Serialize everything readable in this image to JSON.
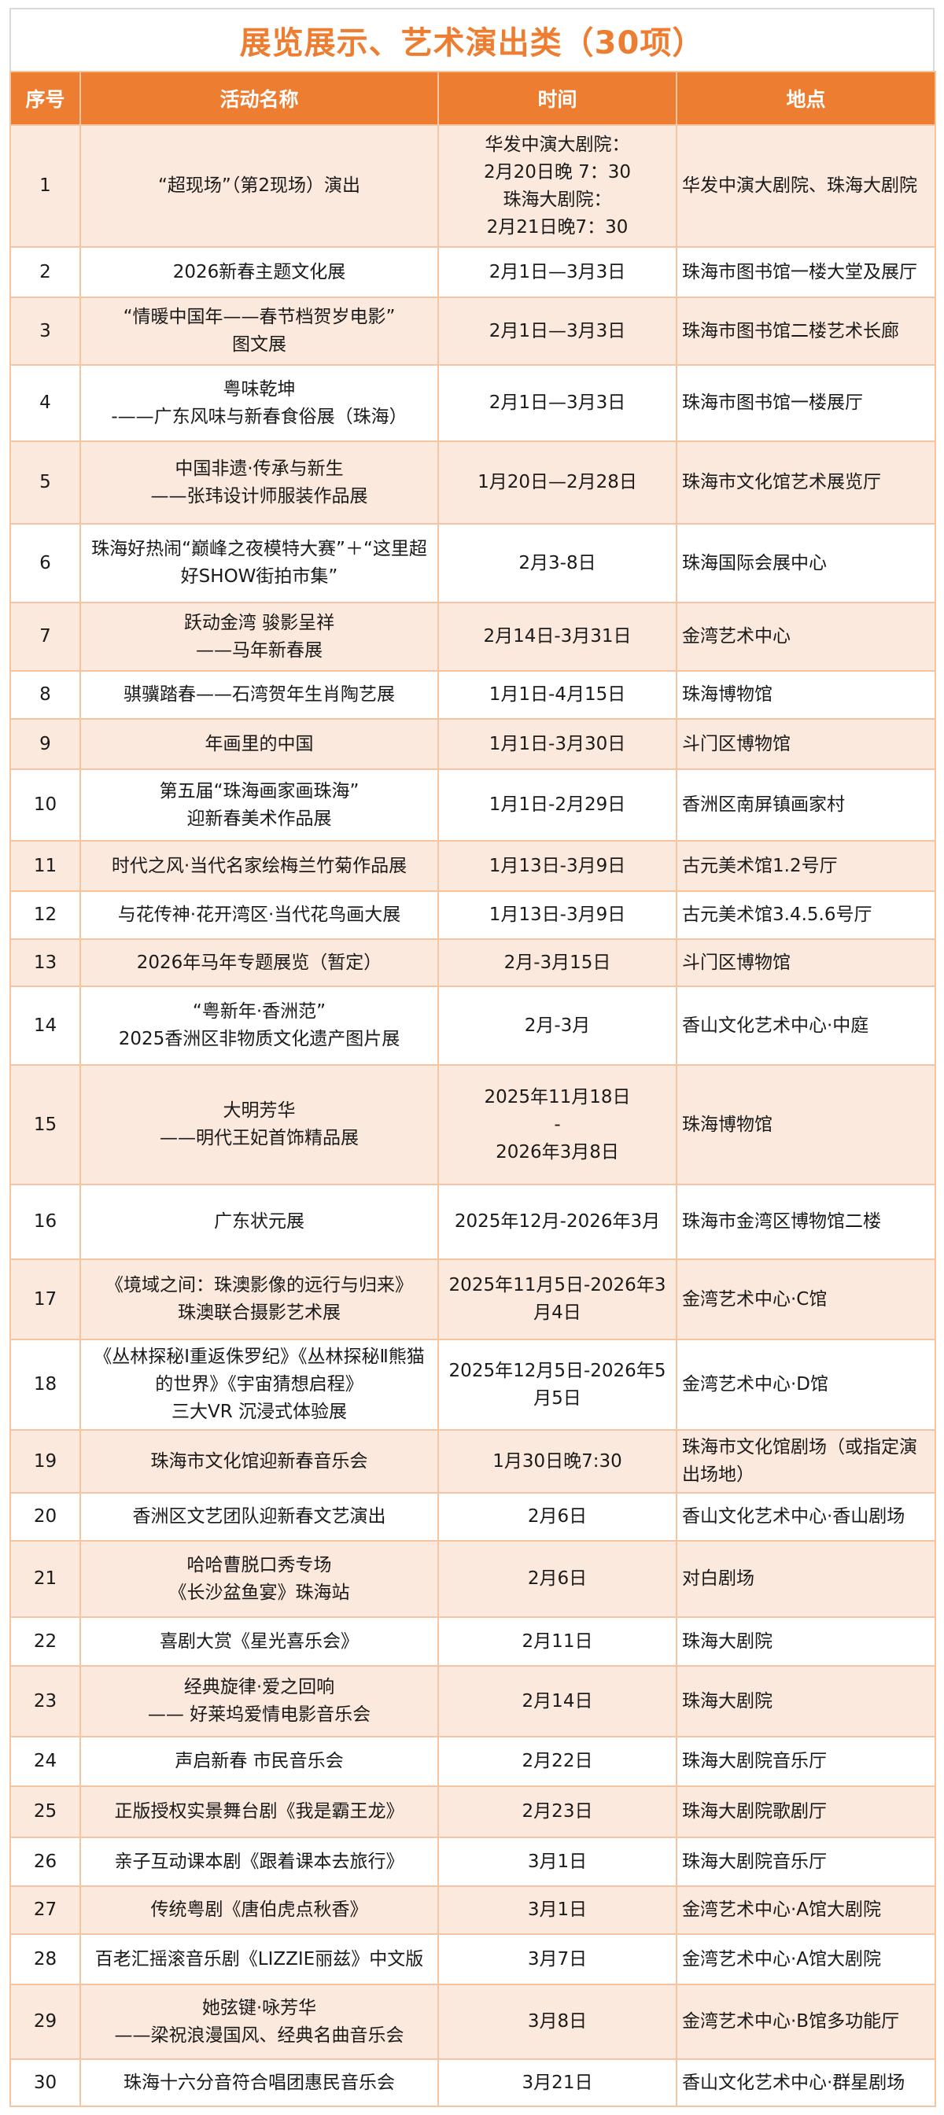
{
  "page": {
    "title": "展览展示、艺术演出类（30项）"
  },
  "table": {
    "columns": [
      "序号",
      "活动名称",
      "时间",
      "地点"
    ],
    "rows": [
      {
        "no": "1",
        "name": "“超现场”（第2现场）演出",
        "time": "华发中演大剧院：\n2月20日晚 7：30\n珠海大剧院：\n2月21日晚7：30",
        "location": "华发中演大剧院、珠海大剧院"
      },
      {
        "no": "2",
        "name": "2026新春主题文化展",
        "time": "2月1日—3月3日",
        "location": "珠海市图书馆一楼大堂及展厅"
      },
      {
        "no": "3",
        "name": "“情暖中国年——春节档贺岁电影”\n图文展",
        "time": "2月1日—3月3日",
        "location": "珠海市图书馆二楼艺术长廊"
      },
      {
        "no": "4",
        "name": "粤味乾坤\n-——广东风味与新春食俗展（珠海）",
        "time": "2月1日—3月3日",
        "location": "珠海市图书馆一楼展厅"
      },
      {
        "no": "5",
        "name": "中国非遗·传承与新生\n——张玮设计师服装作品展",
        "time": "1月20日—2月28日",
        "location": "珠海市文化馆艺术展览厅"
      },
      {
        "no": "6",
        "name": "珠海好热闹“巅峰之夜模特大赛”＋“这里超好SHOW街拍市集”",
        "time": "2月3-8日",
        "location": "珠海国际会展中心"
      },
      {
        "no": "7",
        "name": "跃动金湾 骏影呈祥\n——马年新春展",
        "time": "2月14日-3月31日",
        "location": "金湾艺术中心"
      },
      {
        "no": "8",
        "name": "骐骥踏春——石湾贺年生肖陶艺展",
        "time": "1月1日-4月15日",
        "location": "珠海博物馆"
      },
      {
        "no": "9",
        "name": "年画里的中国",
        "time": "1月1日-3月30日",
        "location": "斗门区博物馆"
      },
      {
        "no": "10",
        "name": "第五届“珠海画家画珠海”\n迎新春美术作品展",
        "time": "1月1日-2月29日",
        "location": "香洲区南屏镇画家村"
      },
      {
        "no": "11",
        "name": "时代之风·当代名家绘梅兰竹菊作品展",
        "time": "1月13日-3月9日",
        "location": "古元美术馆1.2号厅"
      },
      {
        "no": "12",
        "name": "与花传神·花开湾区·当代花鸟画大展",
        "time": "1月13日-3月9日",
        "location": "古元美术馆3.4.5.6号厅"
      },
      {
        "no": "13",
        "name": "2026年马年专题展览（暂定）",
        "time": "2月-3月15日",
        "location": "斗门区博物馆"
      },
      {
        "no": "14",
        "name": "“粤新年·香洲范”\n2025香洲区非物质文化遗产图片展",
        "time": "2月-3月",
        "location": "香山文化艺术中心·中庭"
      },
      {
        "no": "15",
        "name": "大明芳华\n——明代王妃首饰精品展",
        "time": "2025年11月18日\n-\n2026年3月8日",
        "location": "珠海博物馆"
      },
      {
        "no": "16",
        "name": "广东状元展",
        "time": "2025年12月-2026年3月",
        "location": "珠海市金湾区博物馆二楼"
      },
      {
        "no": "17",
        "name": "《境域之间：珠澳影像的远行与归来》\n珠澳联合摄影艺术展",
        "time": "2025年11月5日-2026年3月4日",
        "location": "金湾艺术中心·C馆"
      },
      {
        "no": "18",
        "name": "《丛林探秘I重返侏罗纪》《丛林探秘Ⅱ熊猫的世界》《宇宙猜想启程》\n三大VR 沉浸式体验展",
        "time": "2025年12月5日-2026年5月5日",
        "location": "金湾艺术中心·D馆"
      },
      {
        "no": "19",
        "name": "珠海市文化馆迎新春音乐会",
        "time": "1月30日晚7:30",
        "location": "珠海市文化馆剧场（或指定演出场地）"
      },
      {
        "no": "20",
        "name": "香洲区文艺团队迎新春文艺演出",
        "time": "2月6日",
        "location": "香山文化艺术中心·香山剧场"
      },
      {
        "no": "21",
        "name": "哈哈曹脱口秀专场\n《长沙盆鱼宴》珠海站",
        "time": "2月6日",
        "location": "对白剧场"
      },
      {
        "no": "22",
        "name": "喜剧大赏《星光喜乐会》",
        "time": "2月11日",
        "location": "珠海大剧院"
      },
      {
        "no": "23",
        "name": "经典旋律·爱之回响\n—— 好莱坞爱情电影音乐会",
        "time": "2月14日",
        "location": "珠海大剧院"
      },
      {
        "no": "24",
        "name": "声启新春 市民音乐会",
        "time": "2月22日",
        "location": "珠海大剧院音乐厅"
      },
      {
        "no": "25",
        "name": "正版授权实景舞台剧《我是霸王龙》",
        "time": "2月23日",
        "location": "珠海大剧院歌剧厅"
      },
      {
        "no": "26",
        "name": "亲子互动课本剧《跟着课本去旅行》",
        "time": "3月1日",
        "location": "珠海大剧院音乐厅"
      },
      {
        "no": "27",
        "name": "传统粤剧《唐伯虎点秋香》",
        "time": "3月1日",
        "location": "金湾艺术中心·A馆大剧院"
      },
      {
        "no": "28",
        "name": "百老汇摇滚音乐剧《LIZZIE丽兹》中文版",
        "time": "3月7日",
        "location": "金湾艺术中心·A馆大剧院"
      },
      {
        "no": "29",
        "name": "她弦键·咏芳华\n——梁祝浪漫国风、经典名曲音乐会",
        "time": "3月8日",
        "location": "金湾艺术中心·B馆多功能厅"
      },
      {
        "no": "30",
        "name": "珠海十六分音符合唱团惠民音乐会",
        "time": "3月21日",
        "location": "香山文化艺术中心·群星剧场"
      }
    ]
  },
  "colors": {
    "accent": "#ED7D31",
    "alt_row_bg": "#FCE9DD",
    "inner_border": "#F5C4A1",
    "outer_border": "#E8823C",
    "title_border": "#D9D9D9",
    "text": "#1A1A1A"
  }
}
